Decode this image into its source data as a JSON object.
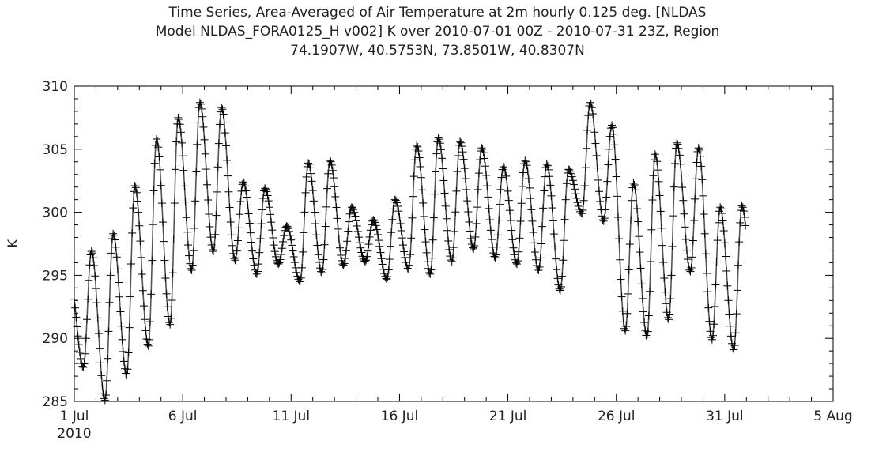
{
  "chart_data": {
    "type": "line",
    "title": [
      "Time Series, Area-Averaged of Air Temperature at 2m hourly 0.125 deg. [NLDAS",
      "Model NLDAS_FORA0125_H v002] K over 2010-07-01 00Z - 2010-07-31 23Z, Region",
      "74.1907W, 40.5753N, 73.8501W, 40.8307N"
    ],
    "xlabel": "",
    "ylabel": "K",
    "xlim": [
      "2010-07-01",
      "2010-08-05"
    ],
    "ylim": [
      285,
      310
    ],
    "grid": false,
    "legend": "none",
    "line_color": "#555555",
    "marker": "plus",
    "marker_color": "#000000",
    "x_ticks": [
      {
        "date": "2010-07-01",
        "label": "1 Jul",
        "sublabel": "2010"
      },
      {
        "date": "2010-07-06",
        "label": "6 Jul"
      },
      {
        "date": "2010-07-11",
        "label": "11 Jul"
      },
      {
        "date": "2010-07-16",
        "label": "16 Jul"
      },
      {
        "date": "2010-07-21",
        "label": "21 Jul"
      },
      {
        "date": "2010-07-26",
        "label": "26 Jul"
      },
      {
        "date": "2010-07-31",
        "label": "31 Jul"
      },
      {
        "date": "2010-08-05",
        "label": "5 Aug"
      }
    ],
    "y_ticks": [
      285,
      290,
      295,
      300,
      305,
      310
    ],
    "series": [
      {
        "points": [
          {
            "x": "2010-07-01",
            "min": 287.7,
            "max": 296.9
          },
          {
            "x": "2010-07-02",
            "min": 285.1,
            "max": 298.3
          },
          {
            "x": "2010-07-03",
            "min": 287.1,
            "max": 302.1
          },
          {
            "x": "2010-07-04",
            "min": 289.4,
            "max": 305.8
          },
          {
            "x": "2010-07-05",
            "min": 291.1,
            "max": 307.5
          },
          {
            "x": "2010-07-06",
            "min": 295.4,
            "max": 308.7
          },
          {
            "x": "2010-07-07",
            "min": 296.9,
            "max": 308.3
          },
          {
            "x": "2010-07-08",
            "min": 296.2,
            "max": 302.4
          },
          {
            "x": "2010-07-09",
            "min": 295.1,
            "max": 301.9
          },
          {
            "x": "2010-07-10",
            "min": 295.9,
            "max": 298.9
          },
          {
            "x": "2010-07-11",
            "min": 294.5,
            "max": 303.9
          },
          {
            "x": "2010-07-12",
            "min": 295.2,
            "max": 304.1
          },
          {
            "x": "2010-07-13",
            "min": 295.8,
            "max": 300.4
          },
          {
            "x": "2010-07-14",
            "min": 296.1,
            "max": 299.4
          },
          {
            "x": "2010-07-15",
            "min": 294.7,
            "max": 301.0
          },
          {
            "x": "2010-07-16",
            "min": 295.5,
            "max": 305.3
          },
          {
            "x": "2010-07-17",
            "min": 295.1,
            "max": 305.9
          },
          {
            "x": "2010-07-18",
            "min": 296.1,
            "max": 305.6
          },
          {
            "x": "2010-07-19",
            "min": 297.1,
            "max": 305.1
          },
          {
            "x": "2010-07-20",
            "min": 296.4,
            "max": 303.6
          },
          {
            "x": "2010-07-21",
            "min": 295.9,
            "max": 304.1
          },
          {
            "x": "2010-07-22",
            "min": 295.4,
            "max": 303.8
          },
          {
            "x": "2010-07-23",
            "min": 293.8,
            "max": 303.4
          },
          {
            "x": "2010-07-24",
            "min": 299.9,
            "max": 308.7
          },
          {
            "x": "2010-07-25",
            "min": 299.3,
            "max": 306.9
          },
          {
            "x": "2010-07-26",
            "min": 290.6,
            "max": 302.3
          },
          {
            "x": "2010-07-27",
            "min": 290.1,
            "max": 304.6
          },
          {
            "x": "2010-07-28",
            "min": 291.5,
            "max": 305.5
          },
          {
            "x": "2010-07-29",
            "min": 295.3,
            "max": 305.1
          },
          {
            "x": "2010-07-30",
            "min": 289.9,
            "max": 300.4
          },
          {
            "x": "2010-07-31",
            "min": 289.1,
            "max": 300.5
          }
        ]
      }
    ]
  }
}
